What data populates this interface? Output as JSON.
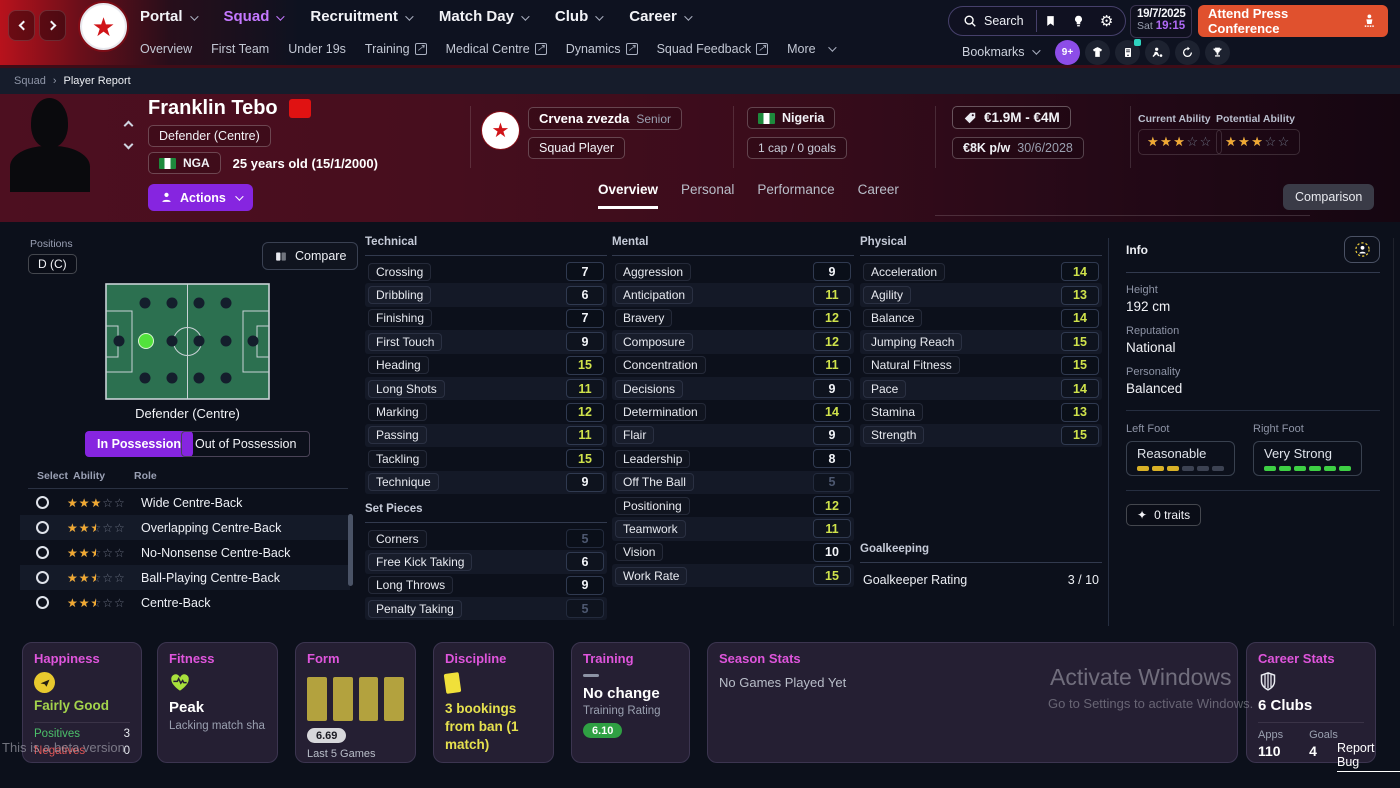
{
  "palette": {
    "accent_purple": "#8625e0",
    "nav_active_purple": "#c478ff",
    "attr_high_green": "#cfe24b",
    "star_gold": "#f0a832",
    "press_orange": "#e0512e",
    "card_header_magenta": "#df55dc",
    "time_purple": "#b06af5",
    "pitch_green": "#2c7050",
    "highlight_dot_green": "#52e23c",
    "positives_green": "#4cc06a",
    "negatives_red": "#e05555"
  },
  "topbar": {
    "nav": {
      "portal": "Portal",
      "squad": "Squad",
      "recruitment": "Recruitment",
      "matchday": "Match Day",
      "club": "Club",
      "career": "Career"
    },
    "subnav": {
      "overview": "Overview",
      "first_team": "First Team",
      "under19s": "Under 19s",
      "training": "Training",
      "medical": "Medical Centre",
      "dynamics": "Dynamics",
      "feedback": "Squad Feedback",
      "more": "More"
    },
    "search_label": "Search",
    "date": "19/7/2025",
    "day": "Sat",
    "time": "19:15",
    "press_button": "Attend Press Conference",
    "bookmarks_label": "Bookmarks",
    "inbox_badge": "9+"
  },
  "breadcrumb": {
    "section": "Squad",
    "page": "Player Report"
  },
  "player": {
    "name": "Franklin Tebo",
    "position": "Defender (Centre)",
    "nationality_code": "NGA",
    "age_info": "25 years old (15/1/2000)",
    "club_name": "Crvena zvezda",
    "club_team": "Senior",
    "club_status": "Squad Player",
    "country": "Nigeria",
    "caps": "1 cap / 0 goals",
    "value": "€1.9M - €4M",
    "wage": "€8K p/w",
    "contract_end": "30/6/2028",
    "current_ability_label": "Current Ability",
    "potential_ability_label": "Potential Ability",
    "current_ability": 3,
    "potential_ability": 3,
    "actions_label": "Actions"
  },
  "tabs": {
    "overview": "Overview",
    "personal": "Personal",
    "performance": "Performance",
    "career": "Career",
    "comparison": "Comparison"
  },
  "positions": {
    "title": "Positions",
    "chip": "D (C)",
    "compare": "Compare",
    "caption": "Defender (Centre)",
    "toggle_in": "In Possession",
    "toggle_out": "Out of Possession",
    "col_select": "Select",
    "col_ability": "Ability",
    "col_role": "Role",
    "roles": [
      {
        "rating": 3,
        "name": "Wide Centre-Back"
      },
      {
        "rating": 2.5,
        "name": "Overlapping Centre-Back"
      },
      {
        "rating": 2.5,
        "name": "No-Nonsense Centre-Back"
      },
      {
        "rating": 2.5,
        "name": "Ball-Playing Centre-Back"
      },
      {
        "rating": 2.5,
        "name": "Centre-Back"
      }
    ]
  },
  "attributes": {
    "technical": {
      "title": "Technical",
      "rows": [
        {
          "label": "Crossing",
          "value": 7,
          "tone": "mid"
        },
        {
          "label": "Dribbling",
          "value": 6,
          "tone": "mid"
        },
        {
          "label": "Finishing",
          "value": 7,
          "tone": "mid"
        },
        {
          "label": "First Touch",
          "value": 9,
          "tone": "mid"
        },
        {
          "label": "Heading",
          "value": 15,
          "tone": "high"
        },
        {
          "label": "Long Shots",
          "value": 11,
          "tone": "high"
        },
        {
          "label": "Marking",
          "value": 12,
          "tone": "high"
        },
        {
          "label": "Passing",
          "value": 11,
          "tone": "high"
        },
        {
          "label": "Tackling",
          "value": 15,
          "tone": "high"
        },
        {
          "label": "Technique",
          "value": 9,
          "tone": "mid"
        }
      ]
    },
    "set_pieces": {
      "title": "Set Pieces",
      "rows": [
        {
          "label": "Corners",
          "value": 5,
          "tone": "low"
        },
        {
          "label": "Free Kick Taking",
          "value": 6,
          "tone": "mid"
        },
        {
          "label": "Long Throws",
          "value": 9,
          "tone": "mid"
        },
        {
          "label": "Penalty Taking",
          "value": 5,
          "tone": "low"
        }
      ]
    },
    "mental": {
      "title": "Mental",
      "rows": [
        {
          "label": "Aggression",
          "value": 9,
          "tone": "mid"
        },
        {
          "label": "Anticipation",
          "value": 11,
          "tone": "high"
        },
        {
          "label": "Bravery",
          "value": 12,
          "tone": "high"
        },
        {
          "label": "Composure",
          "value": 12,
          "tone": "high"
        },
        {
          "label": "Concentration",
          "value": 11,
          "tone": "high"
        },
        {
          "label": "Decisions",
          "value": 9,
          "tone": "mid"
        },
        {
          "label": "Determination",
          "value": 14,
          "tone": "high"
        },
        {
          "label": "Flair",
          "value": 9,
          "tone": "mid"
        },
        {
          "label": "Leadership",
          "value": 8,
          "tone": "mid"
        },
        {
          "label": "Off The Ball",
          "value": 5,
          "tone": "low"
        },
        {
          "label": "Positioning",
          "value": 12,
          "tone": "high"
        },
        {
          "label": "Teamwork",
          "value": 11,
          "tone": "high"
        },
        {
          "label": "Vision",
          "value": 10,
          "tone": "mid"
        },
        {
          "label": "Work Rate",
          "value": 15,
          "tone": "high"
        }
      ]
    },
    "physical": {
      "title": "Physical",
      "rows": [
        {
          "label": "Acceleration",
          "value": 14,
          "tone": "high"
        },
        {
          "label": "Agility",
          "value": 13,
          "tone": "high"
        },
        {
          "label": "Balance",
          "value": 14,
          "tone": "high"
        },
        {
          "label": "Jumping Reach",
          "value": 15,
          "tone": "high"
        },
        {
          "label": "Natural Fitness",
          "value": 15,
          "tone": "high"
        },
        {
          "label": "Pace",
          "value": 14,
          "tone": "high"
        },
        {
          "label": "Stamina",
          "value": 13,
          "tone": "high"
        },
        {
          "label": "Strength",
          "value": 15,
          "tone": "high"
        }
      ]
    },
    "goalkeeping": {
      "title": "Goalkeeping",
      "label": "Goalkeeper Rating",
      "value": "3 / 10"
    }
  },
  "info": {
    "title": "Info",
    "height_label": "Height",
    "height": "192 cm",
    "reputation_label": "Reputation",
    "reputation": "National",
    "personality_label": "Personality",
    "personality": "Balanced",
    "left_foot_label": "Left Foot",
    "left_foot": "Reasonable",
    "left_meter": {
      "filled": 3,
      "total": 6,
      "color": "#d9b127"
    },
    "right_foot_label": "Right Foot",
    "right_foot": "Very Strong",
    "right_meter": {
      "filled": 6,
      "total": 6,
      "color": "#3ecf44"
    },
    "traits": "0 traits"
  },
  "cards": {
    "happiness": {
      "title": "Happiness",
      "value": "Fairly Good",
      "positives_label": "Positives",
      "positives": 3,
      "negatives_label": "Negatives",
      "negatives": 0
    },
    "fitness": {
      "title": "Fitness",
      "value": "Peak",
      "note": "Lacking match sha..."
    },
    "form": {
      "title": "Form",
      "bars": 4,
      "rating": "6.69",
      "label": "Last 5 Games"
    },
    "discipline": {
      "title": "Discipline",
      "text": "3 bookings from ban (1 match)"
    },
    "training": {
      "title": "Training",
      "value": "No change",
      "label": "Training Rating",
      "rating": "6.10"
    },
    "season": {
      "title": "Season Stats",
      "empty": "No Games Played Yet"
    },
    "career": {
      "title": "Career Stats",
      "clubs": "6 Clubs",
      "apps_label": "Apps",
      "apps": "110",
      "goals_label": "Goals",
      "goals": "4"
    }
  },
  "watermarks": {
    "beta": "This is a beta version",
    "activate1": "Activate Windows",
    "activate2": "Go to Settings to activate Windows.",
    "report": "Report Bug"
  }
}
